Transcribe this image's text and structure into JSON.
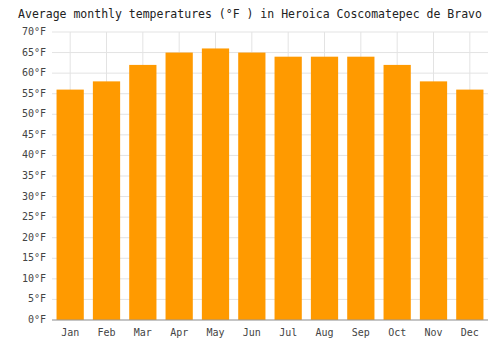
{
  "chart_data": {
    "type": "bar",
    "title": "Average monthly temperatures (°F ) in Heroica Coscomatepec de Bravo",
    "categories": [
      "Jan",
      "Feb",
      "Mar",
      "Apr",
      "May",
      "Jun",
      "Jul",
      "Aug",
      "Sep",
      "Oct",
      "Nov",
      "Dec"
    ],
    "values": [
      56,
      58,
      62,
      65,
      66,
      65,
      64,
      64,
      64,
      62,
      58,
      56
    ],
    "color": "#FF9A00",
    "ylim": [
      0,
      70
    ],
    "yticks": [
      {
        "value": 0,
        "label": "0°F"
      },
      {
        "value": 5,
        "label": "5°F"
      },
      {
        "value": 10,
        "label": "10°F"
      },
      {
        "value": 15,
        "label": "15°F"
      },
      {
        "value": 20,
        "label": "20°F"
      },
      {
        "value": 25,
        "label": "25°F"
      },
      {
        "value": 30,
        "label": "30°F"
      },
      {
        "value": 35,
        "label": "35°F"
      },
      {
        "value": 40,
        "label": "40°F"
      },
      {
        "value": 45,
        "label": "45°F"
      },
      {
        "value": 50,
        "label": "50°F"
      },
      {
        "value": 55,
        "label": "55°F"
      },
      {
        "value": 60,
        "label": "60°F"
      },
      {
        "value": 65,
        "label": "65°F"
      },
      {
        "value": 70,
        "label": "70°F"
      }
    ],
    "grid": true
  }
}
